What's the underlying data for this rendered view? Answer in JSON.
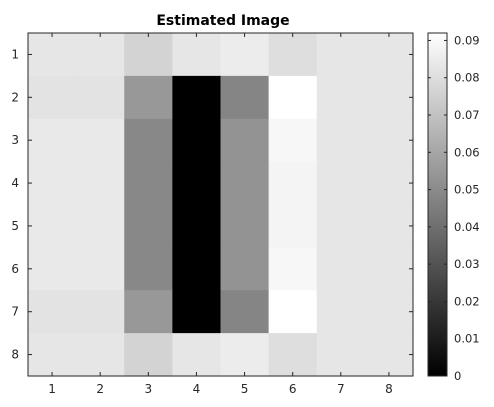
{
  "chart_data": {
    "type": "heatmap",
    "title": "Estimated Image",
    "xlabel": "",
    "ylabel": "",
    "x_ticks": [
      "1",
      "2",
      "3",
      "4",
      "5",
      "6",
      "7",
      "8"
    ],
    "y_ticks": [
      "1",
      "2",
      "3",
      "4",
      "5",
      "6",
      "7",
      "8"
    ],
    "colormap": "gray",
    "clim": [
      0,
      0.092
    ],
    "colorbar_ticks": [
      "0",
      "0.01",
      "0.02",
      "0.03",
      "0.04",
      "0.05",
      "0.06",
      "0.07",
      "0.08",
      "0.09"
    ],
    "colorbar_tick_values": [
      0,
      0.01,
      0.02,
      0.03,
      0.04,
      0.05,
      0.06,
      0.07,
      0.08,
      0.09
    ],
    "matrix": [
      [
        0.083,
        0.083,
        0.076,
        0.083,
        0.085,
        0.08,
        0.083,
        0.083
      ],
      [
        0.082,
        0.082,
        0.055,
        0.0,
        0.048,
        0.092,
        0.083,
        0.083
      ],
      [
        0.084,
        0.084,
        0.049,
        0.0,
        0.053,
        0.089,
        0.083,
        0.083
      ],
      [
        0.084,
        0.084,
        0.049,
        0.0,
        0.053,
        0.088,
        0.083,
        0.083
      ],
      [
        0.084,
        0.084,
        0.049,
        0.0,
        0.053,
        0.088,
        0.083,
        0.083
      ],
      [
        0.084,
        0.084,
        0.049,
        0.0,
        0.053,
        0.089,
        0.083,
        0.083
      ],
      [
        0.082,
        0.082,
        0.055,
        0.0,
        0.048,
        0.092,
        0.083,
        0.083
      ],
      [
        0.083,
        0.083,
        0.076,
        0.083,
        0.085,
        0.08,
        0.083,
        0.083
      ]
    ]
  }
}
